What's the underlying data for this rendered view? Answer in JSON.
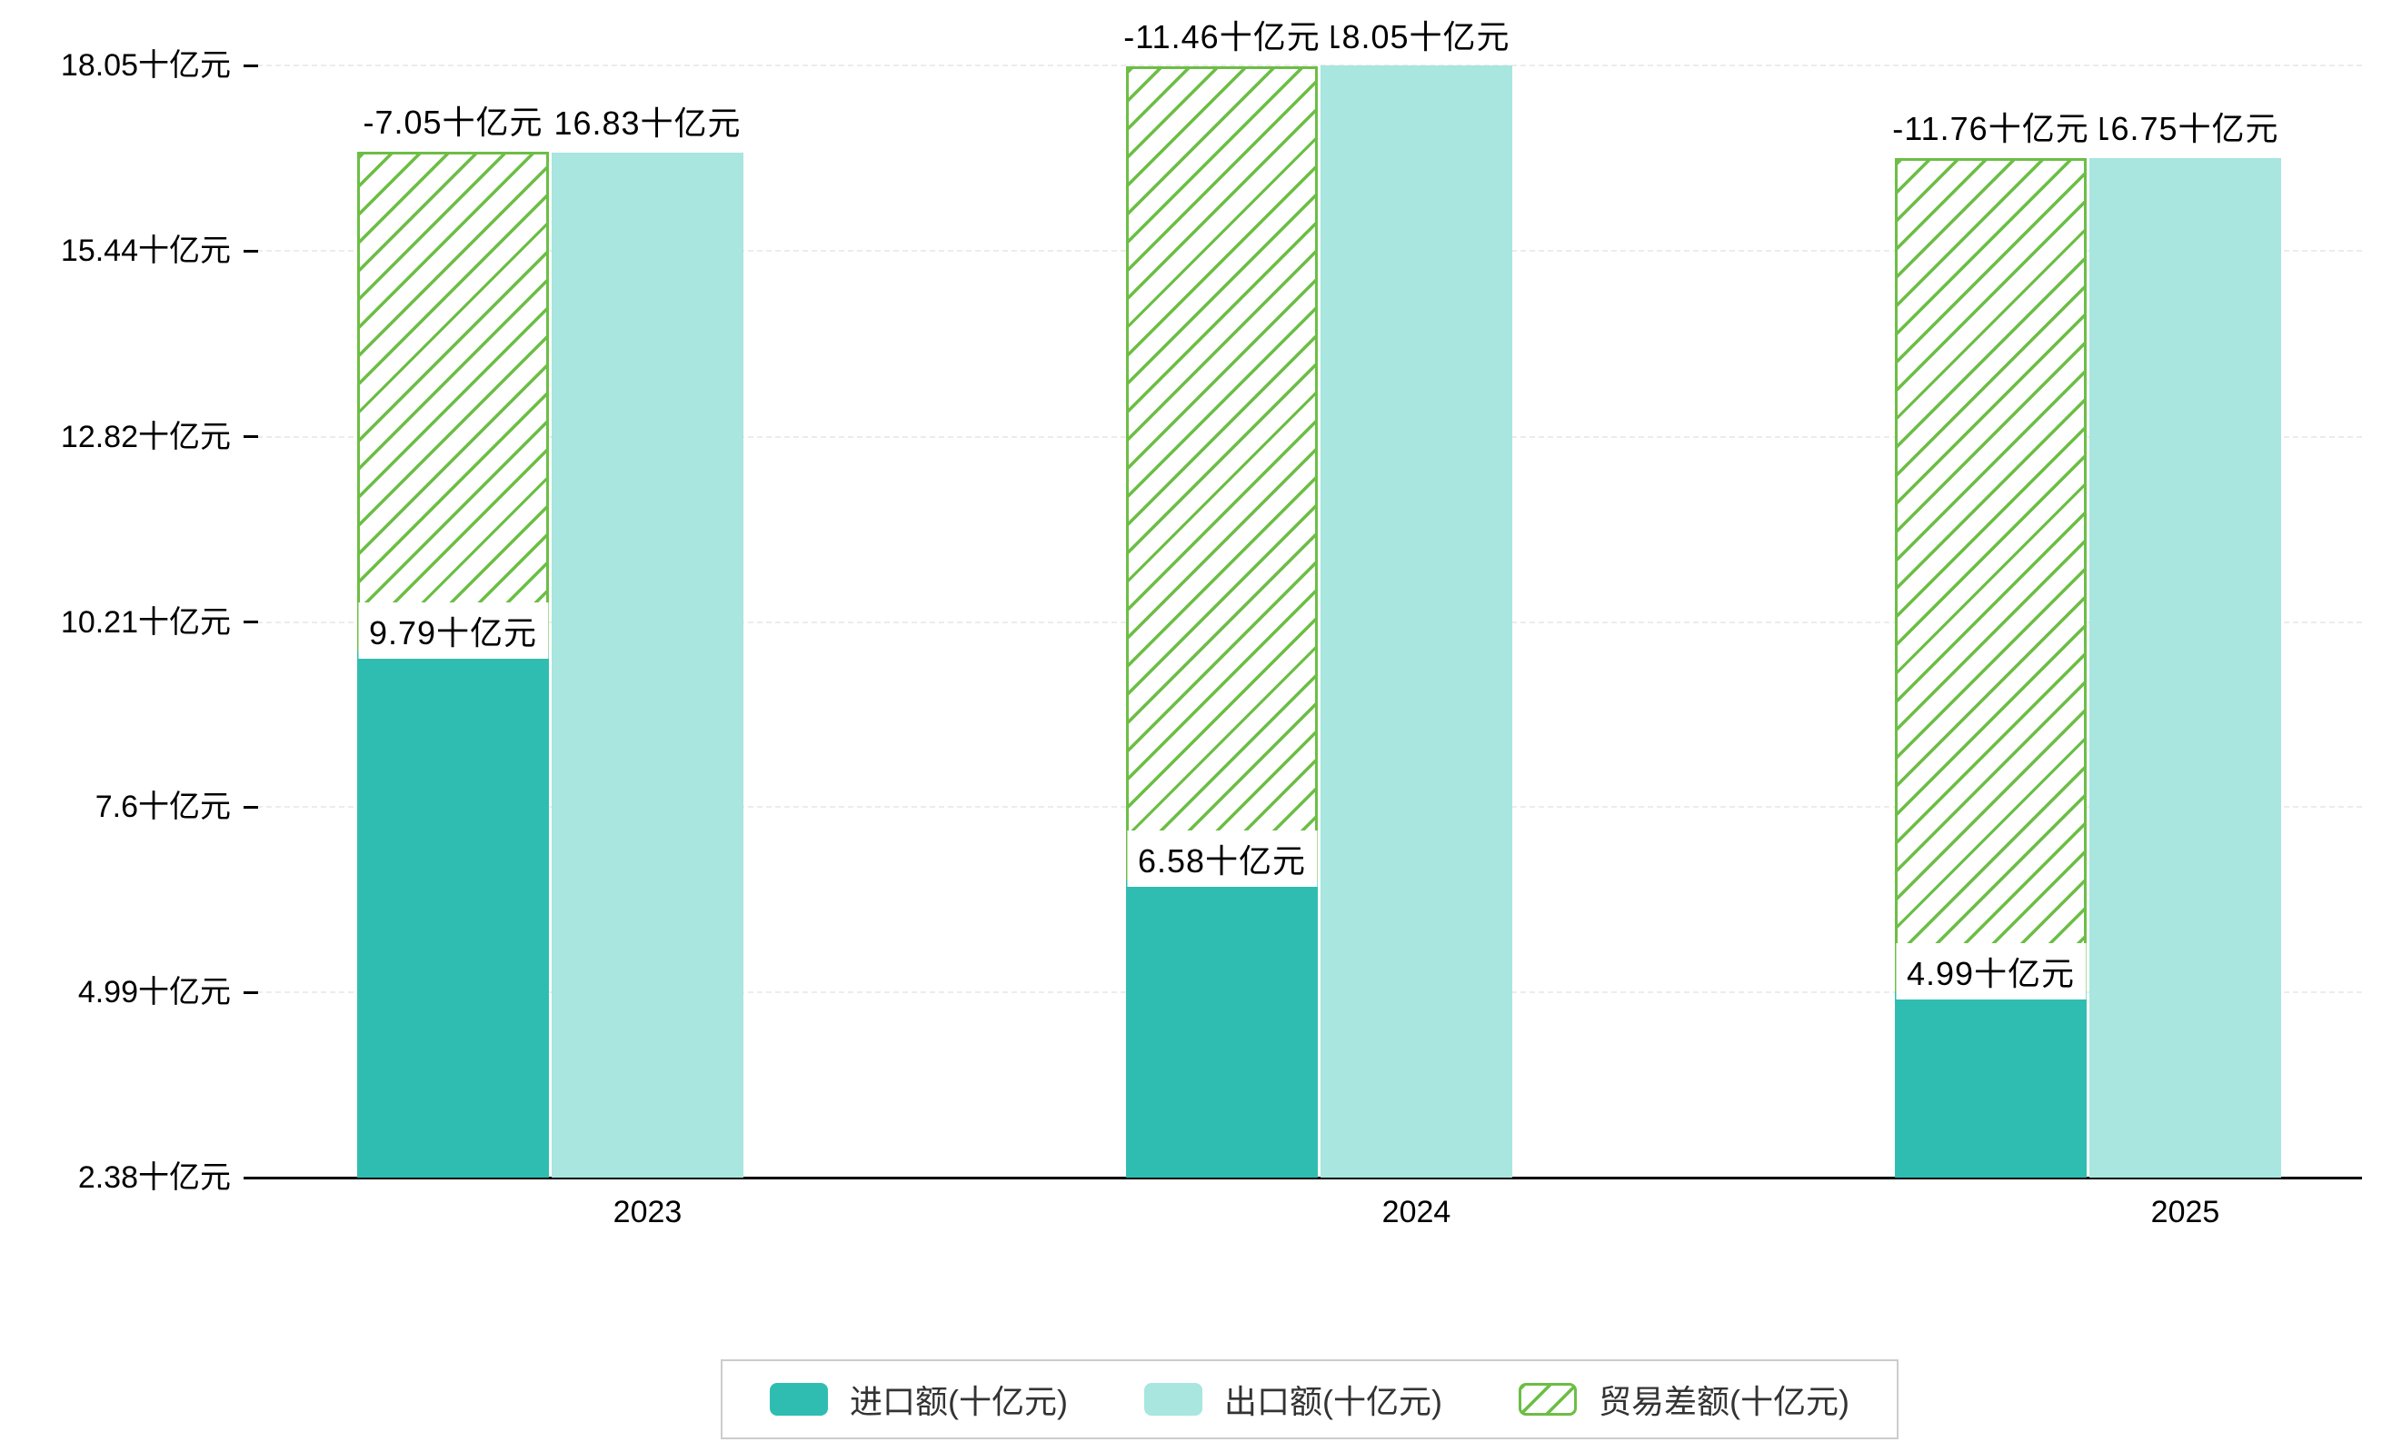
{
  "chart": {
    "background": "#ffffff",
    "colors": {
      "import": "#2FBDB1",
      "export": "#A8E6DF",
      "balance": "#6CBE45",
      "axis": "#000000",
      "grid": "#ececec",
      "label_text": "#000000",
      "label_bg": "#ffffff",
      "legend_border": "#cccccc"
    },
    "y_axis": {
      "tick_labels": [
        "18.05十亿元",
        "15.44十亿元",
        "12.82十亿元",
        "10.21十亿元",
        "7.6十亿元",
        "4.99十亿元",
        "2.38十亿元"
      ],
      "values": [
        18.05,
        15.44,
        12.82,
        10.21,
        7.6,
        4.99,
        2.38
      ]
    },
    "x_axis": {
      "categories": [
        "2023",
        "2024",
        "2025"
      ]
    }
  },
  "chart_data": {
    "type": "bar",
    "categories": [
      "2023",
      "2024",
      "2025"
    ],
    "series": [
      {
        "name": "进口额(十亿元)",
        "key": "import",
        "values": [
          9.79,
          6.58,
          4.99
        ],
        "color": "#2FBDB1",
        "pattern": "solid"
      },
      {
        "name": "出口额(十亿元)",
        "key": "export",
        "values": [
          16.83,
          18.05,
          16.75
        ],
        "color": "#A8E6DF",
        "pattern": "solid"
      },
      {
        "name": "贸易差额(十亿元)",
        "key": "balance",
        "values": [
          -7.05,
          -11.46,
          -11.76
        ],
        "color": "#6CBE45",
        "pattern": "hatched"
      }
    ],
    "data_labels": {
      "import": [
        "9.79十亿元",
        "6.58十亿元",
        "4.99十亿元"
      ],
      "export": [
        "16.83十亿元",
        "18.05十亿元",
        "16.75十亿元"
      ],
      "balance": [
        "-7.05十亿元",
        "-11.46十亿元",
        "-11.76十亿元"
      ]
    },
    "title": "",
    "xlabel": "",
    "ylabel": "",
    "ylim": [
      2.38,
      18.05
    ],
    "unit": "十亿元",
    "grid": true,
    "legend_position": "bottom"
  }
}
